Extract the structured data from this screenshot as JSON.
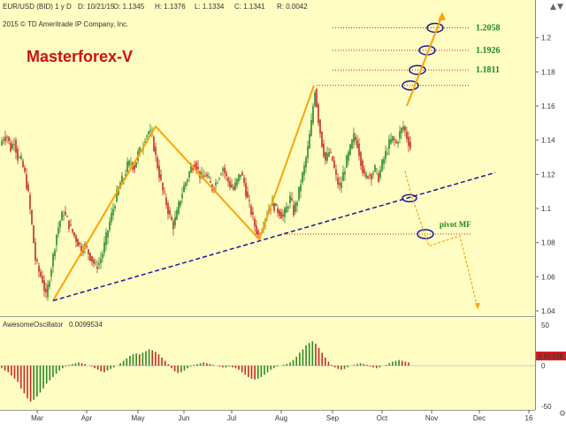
{
  "header": {
    "symbol_info": "EUR/USD (BID) 1 y D",
    "date": "D: 10/21/15",
    "open": "O: 1.1345",
    "high": "H: 1.1376",
    "low": "L: 1.1334",
    "close": "C: 1.1341",
    "range": "R: 0.0042",
    "copyright": "2015 © TD Ameritrade IP Company, Inc."
  },
  "brand": "Masterforex-V",
  "indicator": {
    "name": "AwesomeOscillator",
    "value": "0.0099534",
    "zero_label": "0",
    "axis_top": "50",
    "axis_bottom": "-50",
    "current_tag": "9.95338"
  },
  "colors": {
    "background": "#fffdc2",
    "bull": "#2a8a2a",
    "bear": "#c62a2a",
    "zigzag": "#ffa20a",
    "trendline": "#1a1a99",
    "levels": "#cc2020",
    "level_text": "#1d8a1d"
  },
  "chart_data": {
    "type": "line",
    "title": "",
    "xlabel": "",
    "ylabel": "",
    "ylim": [
      1.04,
      1.22
    ],
    "x_ticks": [
      "Mar",
      "Apr",
      "May",
      "Jun",
      "Jul",
      "Aug",
      "Sep",
      "Oct",
      "Nov",
      "Dec",
      "16"
    ],
    "y_ticks": [
      "1.2",
      "1.18",
      "1.16",
      "1.14",
      "1.12",
      "1.1",
      "1.08",
      "1.06",
      "1.04"
    ],
    "price_series": {
      "name": "",
      "points": [
        [
          0,
          1.137
        ],
        [
          4,
          1.142
        ],
        [
          8,
          1.142
        ],
        [
          12,
          1.135
        ],
        [
          16,
          1.14
        ],
        [
          20,
          1.13
        ],
        [
          24,
          1.128
        ],
        [
          28,
          1.12
        ],
        [
          32,
          1.108
        ],
        [
          36,
          1.09
        ],
        [
          40,
          1.07
        ],
        [
          44,
          1.063
        ],
        [
          48,
          1.058
        ],
        [
          52,
          1.048
        ],
        [
          56,
          1.06
        ],
        [
          60,
          1.072
        ],
        [
          64,
          1.085
        ],
        [
          68,
          1.093
        ],
        [
          72,
          1.098
        ],
        [
          76,
          1.093
        ],
        [
          80,
          1.088
        ],
        [
          84,
          1.084
        ],
        [
          88,
          1.08
        ],
        [
          92,
          1.076
        ],
        [
          96,
          1.078
        ],
        [
          100,
          1.074
        ],
        [
          104,
          1.07
        ],
        [
          108,
          1.066
        ],
        [
          112,
          1.068
        ],
        [
          116,
          1.074
        ],
        [
          120,
          1.083
        ],
        [
          124,
          1.092
        ],
        [
          128,
          1.1
        ],
        [
          132,
          1.108
        ],
        [
          136,
          1.115
        ],
        [
          140,
          1.118
        ],
        [
          144,
          1.125
        ],
        [
          148,
          1.127
        ],
        [
          152,
          1.124
        ],
        [
          156,
          1.132
        ],
        [
          160,
          1.135
        ],
        [
          164,
          1.142
        ],
        [
          168,
          1.145
        ],
        [
          172,
          1.142
        ],
        [
          176,
          1.13
        ],
        [
          180,
          1.12
        ],
        [
          184,
          1.11
        ],
        [
          188,
          1.103
        ],
        [
          192,
          1.095
        ],
        [
          196,
          1.09
        ],
        [
          200,
          1.097
        ],
        [
          204,
          1.106
        ],
        [
          208,
          1.113
        ],
        [
          212,
          1.118
        ],
        [
          216,
          1.124
        ],
        [
          220,
          1.127
        ],
        [
          224,
          1.122
        ],
        [
          228,
          1.118
        ],
        [
          232,
          1.12
        ],
        [
          236,
          1.116
        ],
        [
          240,
          1.112
        ],
        [
          244,
          1.115
        ],
        [
          248,
          1.12
        ],
        [
          252,
          1.124
        ],
        [
          256,
          1.118
        ],
        [
          260,
          1.114
        ],
        [
          264,
          1.111
        ],
        [
          268,
          1.116
        ],
        [
          272,
          1.121
        ],
        [
          276,
          1.115
        ],
        [
          280,
          1.105
        ],
        [
          284,
          1.098
        ],
        [
          288,
          1.09
        ],
        [
          292,
          1.084
        ],
        [
          296,
          1.088
        ],
        [
          300,
          1.095
        ],
        [
          304,
          1.1
        ],
        [
          308,
          1.103
        ],
        [
          312,
          1.1
        ],
        [
          316,
          1.098
        ],
        [
          320,
          1.095
        ],
        [
          324,
          1.1
        ],
        [
          328,
          1.106
        ],
        [
          332,
          1.098
        ],
        [
          336,
          1.105
        ],
        [
          340,
          1.115
        ],
        [
          344,
          1.124
        ],
        [
          348,
          1.135
        ],
        [
          352,
          1.15
        ],
        [
          356,
          1.17
        ],
        [
          360,
          1.152
        ],
        [
          364,
          1.138
        ],
        [
          368,
          1.128
        ],
        [
          372,
          1.133
        ],
        [
          376,
          1.128
        ],
        [
          380,
          1.118
        ],
        [
          384,
          1.112
        ],
        [
          388,
          1.12
        ],
        [
          392,
          1.128
        ],
        [
          396,
          1.135
        ],
        [
          400,
          1.142
        ],
        [
          404,
          1.138
        ],
        [
          408,
          1.128
        ],
        [
          412,
          1.118
        ],
        [
          416,
          1.12
        ],
        [
          420,
          1.12
        ],
        [
          424,
          1.123
        ],
        [
          428,
          1.118
        ],
        [
          432,
          1.126
        ],
        [
          436,
          1.132
        ],
        [
          440,
          1.138
        ],
        [
          444,
          1.141
        ],
        [
          448,
          1.138
        ],
        [
          452,
          1.144
        ],
        [
          456,
          1.148
        ],
        [
          460,
          1.142
        ],
        [
          464,
          1.136
        ]
      ]
    },
    "zigzag": [
      [
        60,
        1.046
      ],
      [
        176,
        1.148
      ],
      [
        293,
        1.082
      ],
      [
        355,
        1.172
      ]
    ],
    "trendline": [
      [
        60,
        1.046
      ],
      [
        560,
        1.121
      ]
    ],
    "target_levels": [
      {
        "price": 1.2058,
        "label": "1.2058"
      },
      {
        "price": 1.1926,
        "label": "1.1926"
      },
      {
        "price": 1.1811,
        "label": "1.1811"
      },
      {
        "price": 1.172,
        "label": ""
      }
    ],
    "pivot": {
      "price": 1.085,
      "label": "pivot MF"
    },
    "projection_up": [
      [
        460,
        1.16
      ],
      [
        500,
        1.213
      ]
    ],
    "projection_down": [
      [
        458,
        1.122
      ],
      [
        465,
        1.108
      ],
      [
        485,
        1.078
      ],
      [
        520,
        1.084
      ],
      [
        540,
        1.042
      ]
    ],
    "oscillator": {
      "ylim": [
        -50,
        50
      ],
      "values": [
        -3,
        -6,
        -8,
        -12,
        -16,
        -20,
        -28,
        -34,
        -40,
        -44,
        -42,
        -38,
        -33,
        -28,
        -22,
        -18,
        -14,
        -10,
        -6,
        -3,
        -1,
        1,
        2,
        3,
        4,
        3,
        2,
        0,
        -1,
        -3,
        -5,
        -7,
        -8,
        -6,
        -4,
        -2,
        0,
        3,
        6,
        9,
        12,
        14,
        15,
        14,
        16,
        18,
        20,
        19,
        17,
        14,
        10,
        6,
        2,
        -3,
        -7,
        -9,
        -8,
        -6,
        -3,
        -1,
        1,
        2,
        3,
        4,
        3,
        2,
        1,
        0,
        -1,
        -2,
        -2,
        -1,
        -2,
        -3,
        -5,
        -8,
        -11,
        -14,
        -16,
        -17,
        -16,
        -14,
        -11,
        -8,
        -5,
        -3,
        -1,
        0,
        1,
        2,
        4,
        7,
        11,
        16,
        20,
        25,
        28,
        30,
        27,
        22,
        16,
        10,
        5,
        1,
        -2,
        -4,
        -5,
        -4,
        -2,
        0,
        1,
        2,
        3,
        2,
        1,
        -1,
        -2,
        -3,
        -2,
        0,
        1,
        3,
        5,
        6,
        7,
        6,
        5,
        4
      ]
    }
  }
}
